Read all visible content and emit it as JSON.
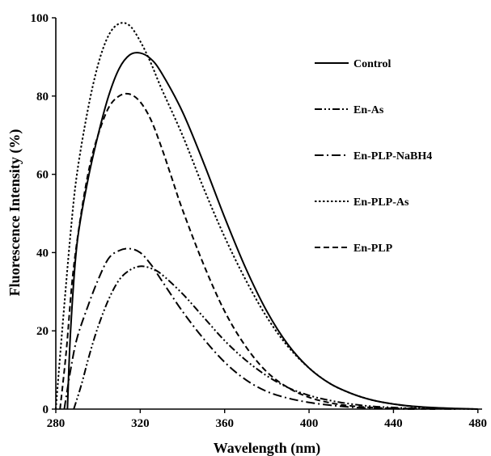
{
  "chart_data": {
    "type": "line",
    "title": "",
    "xlabel": "Wavelength (nm)",
    "ylabel": "Fluorescence Intensity (%)",
    "xlim": [
      280,
      482
    ],
    "ylim": [
      0,
      100
    ],
    "xticks": [
      280,
      320,
      360,
      400,
      440,
      480
    ],
    "yticks": [
      0,
      20,
      40,
      60,
      80,
      100
    ],
    "xtick_labels": [
      "280",
      "320",
      "360",
      "400",
      "440",
      "480"
    ],
    "ytick_labels": [
      "0",
      "20",
      "40",
      "60",
      "80",
      "100"
    ],
    "grid": false,
    "legend_position": "right",
    "legend_labels": [
      "Control",
      "En-As",
      "En-PLP-NaBH4",
      "En-PLP-As",
      "En-PLP"
    ],
    "series": [
      {
        "name": "Control",
        "dash": "solid",
        "x": [
          285.5,
          287,
          290,
          295,
          300,
          305,
          310,
          315,
          320,
          325,
          330,
          340,
          350,
          360,
          370,
          380,
          390,
          400,
          410,
          420,
          430,
          440,
          450,
          460,
          470,
          480
        ],
        "y": [
          0,
          20,
          42,
          58,
          70,
          80,
          87,
          90.5,
          91,
          89.5,
          86,
          76,
          63,
          49,
          36,
          25,
          16.5,
          10.5,
          6.5,
          4,
          2.3,
          1.3,
          0.7,
          0.35,
          0.15,
          0
        ]
      },
      {
        "name": "En-As",
        "dash": "dashdotdot",
        "x": [
          288.5,
          292,
          296,
          300,
          305,
          310,
          315,
          320,
          325,
          330,
          340,
          350,
          360,
          370,
          380,
          390,
          400,
          410,
          420,
          430,
          440,
          450,
          460,
          470
        ],
        "y": [
          0,
          6,
          14,
          21,
          28,
          33,
          35.5,
          36.5,
          36,
          34.5,
          29.5,
          23.5,
          17.5,
          12.5,
          8.5,
          5.5,
          3.5,
          2.2,
          1.3,
          0.7,
          0.4,
          0.2,
          0.1,
          0
        ]
      },
      {
        "name": "En-PLP-NaBH4",
        "dash": "dashdot",
        "x": [
          284,
          287,
          290,
          295,
          300,
          305,
          310,
          315,
          320,
          325,
          330,
          340,
          350,
          360,
          370,
          380,
          390,
          400,
          410,
          420,
          430,
          440,
          450
        ],
        "y": [
          0,
          10,
          18,
          26,
          33,
          38.5,
          40.5,
          41,
          40,
          37,
          33,
          25,
          18,
          12,
          7.5,
          4.5,
          2.8,
          1.7,
          1,
          0.5,
          0.25,
          0.1,
          0
        ]
      },
      {
        "name": "En-PLP-As",
        "dash": "dotted",
        "x": [
          280,
          283,
          287,
          290,
          295,
          300,
          305,
          310,
          315,
          320,
          325,
          330,
          340,
          350,
          360,
          370,
          380,
          390,
          400,
          410,
          420,
          430,
          440,
          450,
          460,
          470,
          480
        ],
        "y": [
          0,
          20,
          45,
          60,
          76,
          88,
          95.5,
          98.5,
          98,
          94,
          88.5,
          82,
          70,
          56.5,
          44,
          33,
          23.5,
          16,
          10.5,
          6.5,
          4,
          2.3,
          1.3,
          0.6,
          0.3,
          0.1,
          0
        ]
      },
      {
        "name": "En-PLP",
        "dash": "dashed",
        "x": [
          282,
          285,
          288,
          292,
          296,
          300,
          305,
          310,
          315,
          320,
          325,
          330,
          335,
          340,
          350,
          360,
          370,
          380,
          390,
          400,
          410,
          420,
          430,
          440,
          450,
          460
        ],
        "y": [
          0,
          15,
          34,
          50,
          62,
          70,
          77,
          80,
          80.5,
          78.5,
          74,
          67,
          59,
          51,
          37,
          25,
          16,
          9.5,
          5.5,
          3,
          1.6,
          0.8,
          0.4,
          0.2,
          0.1,
          0
        ]
      }
    ]
  }
}
